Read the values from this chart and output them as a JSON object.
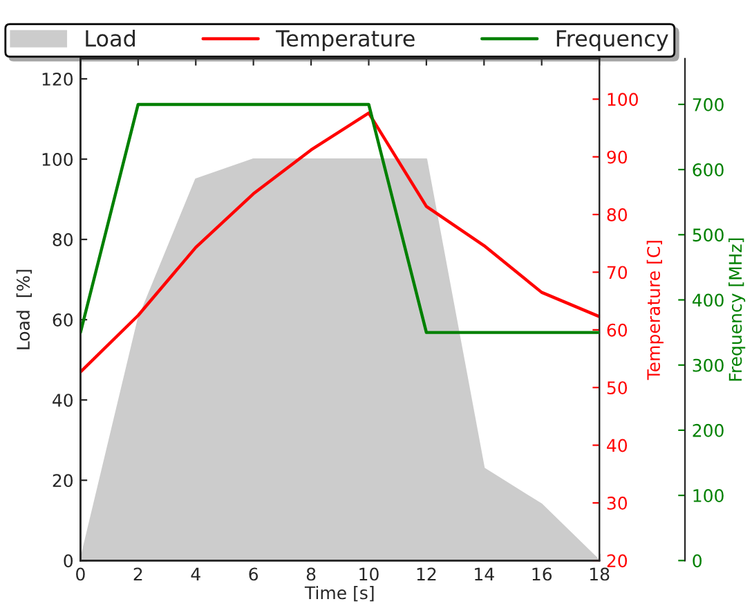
{
  "chart_data": {
    "type": "area",
    "xlabel": "Time [s]",
    "ylabel": "Load  [%]",
    "y2label": "Temperature [C]",
    "y3label": "Frequency [MHz]",
    "x": [
      0,
      2,
      4,
      6,
      8,
      10,
      12,
      14,
      16,
      18
    ],
    "series": [
      {
        "name": "Load",
        "color": "#cccccc",
        "values": [
          0,
          60,
          95,
          100,
          100,
          100,
          100,
          23,
          14,
          0
        ]
      },
      {
        "name": "Temperature",
        "type": "line",
        "axis": "y2",
        "color": "#ff0000",
        "values": [
          52.7,
          62.5,
          74.3,
          83.6,
          91.2,
          97.6,
          81.4,
          74.6,
          66.5,
          62.3
        ]
      },
      {
        "name": "Frequency",
        "type": "line",
        "axis": "y3",
        "color": "#008000",
        "values": [
          350,
          700,
          700,
          700,
          700,
          700,
          350,
          350,
          350,
          350
        ]
      }
    ],
    "xlim": [
      0,
      18
    ],
    "xticks": [
      0,
      2,
      4,
      6,
      8,
      10,
      12,
      14,
      16,
      18
    ],
    "ylim": [
      0,
      125
    ],
    "yticks": [
      0,
      20,
      40,
      60,
      80,
      100,
      120
    ],
    "y2lim": [
      20,
      107
    ],
    "y2ticks": [
      20,
      30,
      40,
      50,
      60,
      70,
      80,
      90,
      100
    ],
    "y3lim": [
      0,
      770
    ],
    "y3ticks": [
      0,
      100,
      200,
      300,
      400,
      500,
      600,
      700
    ],
    "legend": "top",
    "grid": false,
    "marker": "none",
    "line_style": "solid"
  }
}
